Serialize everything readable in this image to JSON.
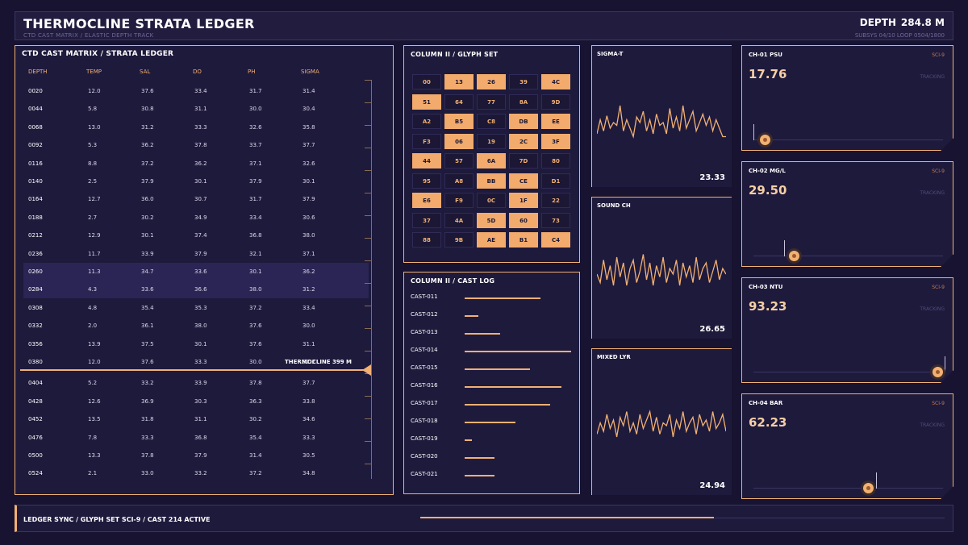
{
  "header": {
    "title": "THERMOCLINE STRATA LEDGER",
    "subtitle": "CTD CAST MATRIX / ELASTIC DEPTH TRACK",
    "depth_label": "DEPTH",
    "depth_value": "284.8 M",
    "subsys": "SUBSYS 04/10  LOOP 0504/1800"
  },
  "ledger": {
    "title": "CTD CAST MATRIX / STRATA LEDGER",
    "columns": [
      "DEPTH",
      "TEMP",
      "SAL",
      "DO",
      "PH",
      "SIGMA"
    ],
    "rows": [
      [
        "0020",
        "12.0",
        "37.6",
        "33.4",
        "31.7",
        "31.4"
      ],
      [
        "0044",
        "5.8",
        "30.8",
        "31.1",
        "30.0",
        "30.4"
      ],
      [
        "0068",
        "13.0",
        "31.2",
        "33.3",
        "32.6",
        "35.8"
      ],
      [
        "0092",
        "5.3",
        "36.2",
        "37.8",
        "33.7",
        "37.7"
      ],
      [
        "0116",
        "8.8",
        "37.2",
        "36.2",
        "37.1",
        "32.6"
      ],
      [
        "0140",
        "2.5",
        "37.9",
        "30.1",
        "37.9",
        "30.1"
      ],
      [
        "0164",
        "12.7",
        "36.0",
        "30.7",
        "31.7",
        "37.9"
      ],
      [
        "0188",
        "2.7",
        "30.2",
        "34.9",
        "33.4",
        "30.6"
      ],
      [
        "0212",
        "12.9",
        "30.1",
        "37.4",
        "36.8",
        "38.0"
      ],
      [
        "0236",
        "11.7",
        "33.9",
        "37.9",
        "32.1",
        "37.1"
      ],
      [
        "0260",
        "11.3",
        "34.7",
        "33.6",
        "30.1",
        "36.2"
      ],
      [
        "0284",
        "4.3",
        "33.6",
        "36.6",
        "38.0",
        "31.2"
      ],
      [
        "0308",
        "4.8",
        "35.4",
        "35.3",
        "37.2",
        "33.4"
      ],
      [
        "0332",
        "2.0",
        "36.1",
        "38.0",
        "37.6",
        "30.0"
      ],
      [
        "0356",
        "13.9",
        "37.5",
        "30.1",
        "37.6",
        "31.1"
      ],
      [
        "0380",
        "12.0",
        "37.6",
        "33.3",
        "30.0",
        "32.2"
      ],
      [
        "0404",
        "5.2",
        "33.2",
        "33.9",
        "37.8",
        "37.7"
      ],
      [
        "0428",
        "12.6",
        "36.9",
        "30.3",
        "36.3",
        "33.8"
      ],
      [
        "0452",
        "13.5",
        "31.8",
        "31.1",
        "30.2",
        "34.6"
      ],
      [
        "0476",
        "7.8",
        "33.3",
        "36.8",
        "35.4",
        "33.3"
      ],
      [
        "0500",
        "13.3",
        "37.8",
        "37.9",
        "31.4",
        "30.5"
      ],
      [
        "0524",
        "2.1",
        "33.0",
        "33.2",
        "37.2",
        "34.8"
      ]
    ],
    "highlight_rows": [
      10,
      11
    ],
    "thermocline_label": "THERMOCLINE 399 M"
  },
  "glyph": {
    "title": "COLUMN II / GLYPH SET",
    "cells": [
      {
        "t": "00",
        "on": false
      },
      {
        "t": "13",
        "on": true
      },
      {
        "t": "26",
        "on": true
      },
      {
        "t": "39",
        "on": false
      },
      {
        "t": "4C",
        "on": true
      },
      {
        "t": "51",
        "on": true
      },
      {
        "t": "64",
        "on": false
      },
      {
        "t": "77",
        "on": false
      },
      {
        "t": "8A",
        "on": false
      },
      {
        "t": "9D",
        "on": false
      },
      {
        "t": "A2",
        "on": false
      },
      {
        "t": "B5",
        "on": true
      },
      {
        "t": "C8",
        "on": false
      },
      {
        "t": "DB",
        "on": true
      },
      {
        "t": "EE",
        "on": true
      },
      {
        "t": "F3",
        "on": false
      },
      {
        "t": "06",
        "on": true
      },
      {
        "t": "19",
        "on": false
      },
      {
        "t": "2C",
        "on": true
      },
      {
        "t": "3F",
        "on": true
      },
      {
        "t": "44",
        "on": true
      },
      {
        "t": "57",
        "on": false
      },
      {
        "t": "6A",
        "on": true
      },
      {
        "t": "7D",
        "on": false
      },
      {
        "t": "80",
        "on": false
      },
      {
        "t": "95",
        "on": false
      },
      {
        "t": "A8",
        "on": false
      },
      {
        "t": "BB",
        "on": true
      },
      {
        "t": "CE",
        "on": true
      },
      {
        "t": "D1",
        "on": false
      },
      {
        "t": "E6",
        "on": true
      },
      {
        "t": "F9",
        "on": false
      },
      {
        "t": "0C",
        "on": false
      },
      {
        "t": "1F",
        "on": true
      },
      {
        "t": "22",
        "on": false
      },
      {
        "t": "37",
        "on": false
      },
      {
        "t": "4A",
        "on": false
      },
      {
        "t": "5D",
        "on": true
      },
      {
        "t": "60",
        "on": true
      },
      {
        "t": "73",
        "on": false
      },
      {
        "t": "88",
        "on": false
      },
      {
        "t": "9B",
        "on": false
      },
      {
        "t": "AE",
        "on": true
      },
      {
        "t": "B1",
        "on": true
      },
      {
        "t": "C4",
        "on": true
      }
    ]
  },
  "castlog": {
    "title": "COLUMN II / CAST LOG",
    "items": [
      {
        "label": "CAST-011",
        "level": 0.71
      },
      {
        "label": "CAST-012",
        "level": 0.13
      },
      {
        "label": "CAST-013",
        "level": 0.33
      },
      {
        "label": "CAST-014",
        "level": 1.0
      },
      {
        "label": "CAST-015",
        "level": 0.61
      },
      {
        "label": "CAST-016",
        "level": 0.91
      },
      {
        "label": "CAST-017",
        "level": 0.8
      },
      {
        "label": "CAST-018",
        "level": 0.48
      },
      {
        "label": "CAST-019",
        "level": 0.07
      },
      {
        "label": "CAST-020",
        "level": 0.28
      },
      {
        "label": "CAST-021",
        "level": 0.28
      }
    ]
  },
  "charts": [
    {
      "title": "SIGMA-T",
      "value": "23.33",
      "series": [
        0.3,
        0.55,
        0.35,
        0.62,
        0.4,
        0.5,
        0.45,
        0.8,
        0.35,
        0.55,
        0.4,
        0.25,
        0.6,
        0.5,
        0.7,
        0.35,
        0.55,
        0.3,
        0.65,
        0.45,
        0.5,
        0.3,
        0.75,
        0.4,
        0.6,
        0.35,
        0.8,
        0.4,
        0.55,
        0.7,
        0.35,
        0.5,
        0.65,
        0.45,
        0.6,
        0.35,
        0.55,
        0.4,
        0.25,
        0.25
      ]
    },
    {
      "title": "SOUND CH",
      "value": "26.65",
      "series": [
        0.5,
        0.35,
        0.75,
        0.4,
        0.65,
        0.3,
        0.8,
        0.45,
        0.7,
        0.3,
        0.6,
        0.75,
        0.35,
        0.55,
        0.85,
        0.4,
        0.7,
        0.3,
        0.65,
        0.45,
        0.8,
        0.35,
        0.6,
        0.5,
        0.75,
        0.3,
        0.7,
        0.45,
        0.65,
        0.35,
        0.8,
        0.4,
        0.6,
        0.7,
        0.35,
        0.55,
        0.75,
        0.4,
        0.6,
        0.5
      ]
    },
    {
      "title": "MIXED LYR",
      "value": "24.94",
      "series": [
        0.35,
        0.55,
        0.4,
        0.7,
        0.45,
        0.6,
        0.3,
        0.65,
        0.5,
        0.75,
        0.4,
        0.55,
        0.35,
        0.7,
        0.45,
        0.6,
        0.75,
        0.4,
        0.65,
        0.35,
        0.55,
        0.5,
        0.7,
        0.3,
        0.6,
        0.45,
        0.75,
        0.4,
        0.55,
        0.65,
        0.35,
        0.7,
        0.5,
        0.6,
        0.4,
        0.75,
        0.45,
        0.55,
        0.7,
        0.4
      ]
    }
  ],
  "channels": [
    {
      "title": "CH-01 PSU",
      "sys": "SCI-9",
      "value": "17.76",
      "status": "TRACKING",
      "marker": 0.0,
      "level": 0.06
    },
    {
      "title": "CH-02 MG/L",
      "sys": "SCI-9",
      "value": "29.50",
      "status": "TRACKING",
      "marker": 0.16,
      "level": 0.21
    },
    {
      "title": "CH-03 NTU",
      "sys": "SCI-9",
      "value": "93.23",
      "status": "TRACKING",
      "marker": 1.0,
      "level": 0.96
    },
    {
      "title": "CH-04 BAR",
      "sys": "SCI-9",
      "value": "62.23",
      "status": "TRACKING",
      "marker": 0.64,
      "level": 0.6
    }
  ],
  "footer": {
    "text": "LEDGER SYNC / GLYPH SET SCI-9 / CAST 214 ACTIVE",
    "progress": 0.56
  },
  "colors": {
    "accent": "#f2b173",
    "bg": "#171330",
    "panel": "#1e1a3c"
  }
}
